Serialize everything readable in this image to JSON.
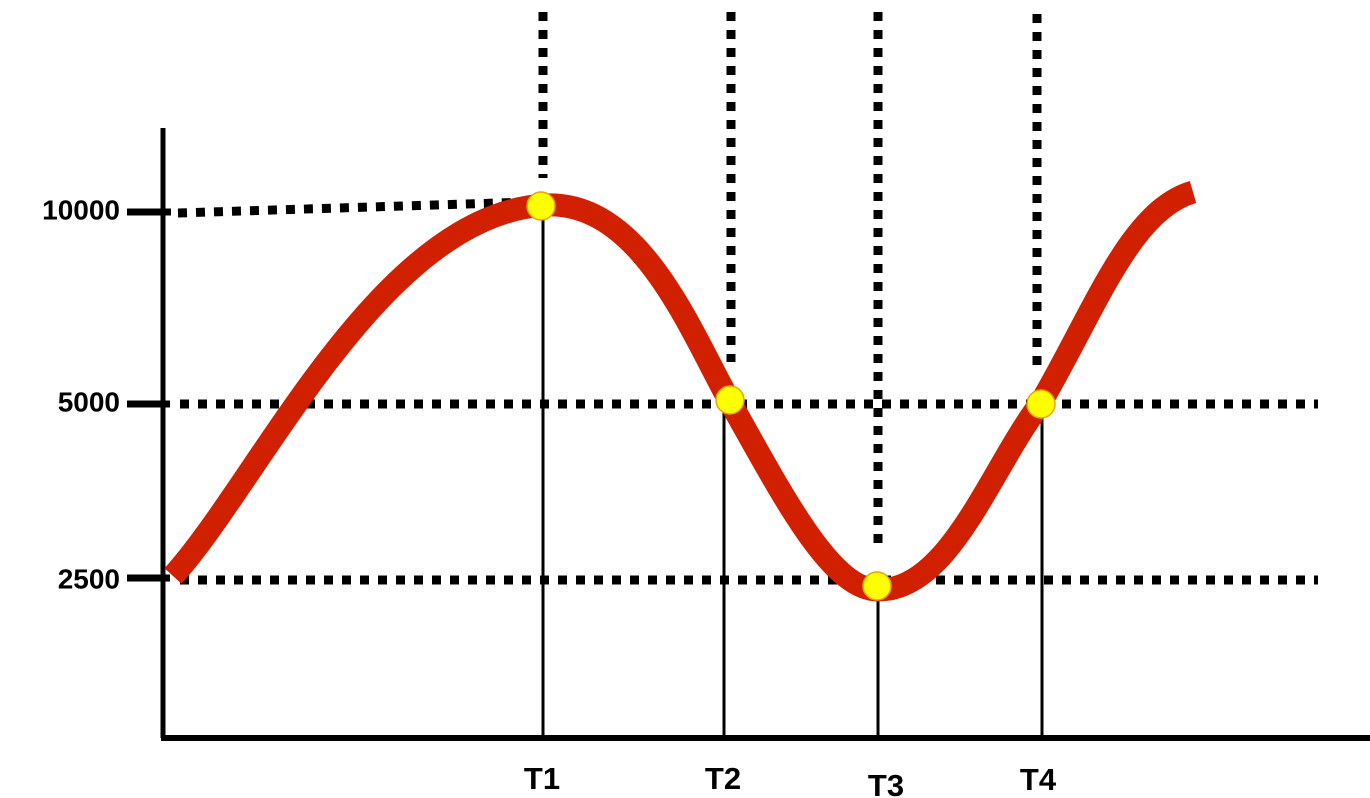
{
  "chart_data": {
    "type": "line",
    "title": "",
    "xlabel": "",
    "ylabel": "",
    "y_tick_labels": [
      "10000",
      "5000",
      "2500"
    ],
    "x_tick_labels": [
      "T1",
      "T2",
      "T3",
      "T4"
    ],
    "series": [
      {
        "values_at_marked_points": [
          {
            "x": "T1",
            "y": 10000
          },
          {
            "x": "T2",
            "y": 5000
          },
          {
            "x": "T3",
            "y": 2500
          },
          {
            "x": "T4",
            "y": 5000
          }
        ]
      }
    ],
    "grid": false,
    "curve_shape": "sine-like wave",
    "reference_lines": "dotted lines through the marked points",
    "colors": {
      "curve": "#d12000",
      "marker_fill": "#ffff00",
      "marker_stroke": "#e8a300",
      "axis": "#000000",
      "guides": "#000000",
      "background": "#ffffff"
    }
  }
}
